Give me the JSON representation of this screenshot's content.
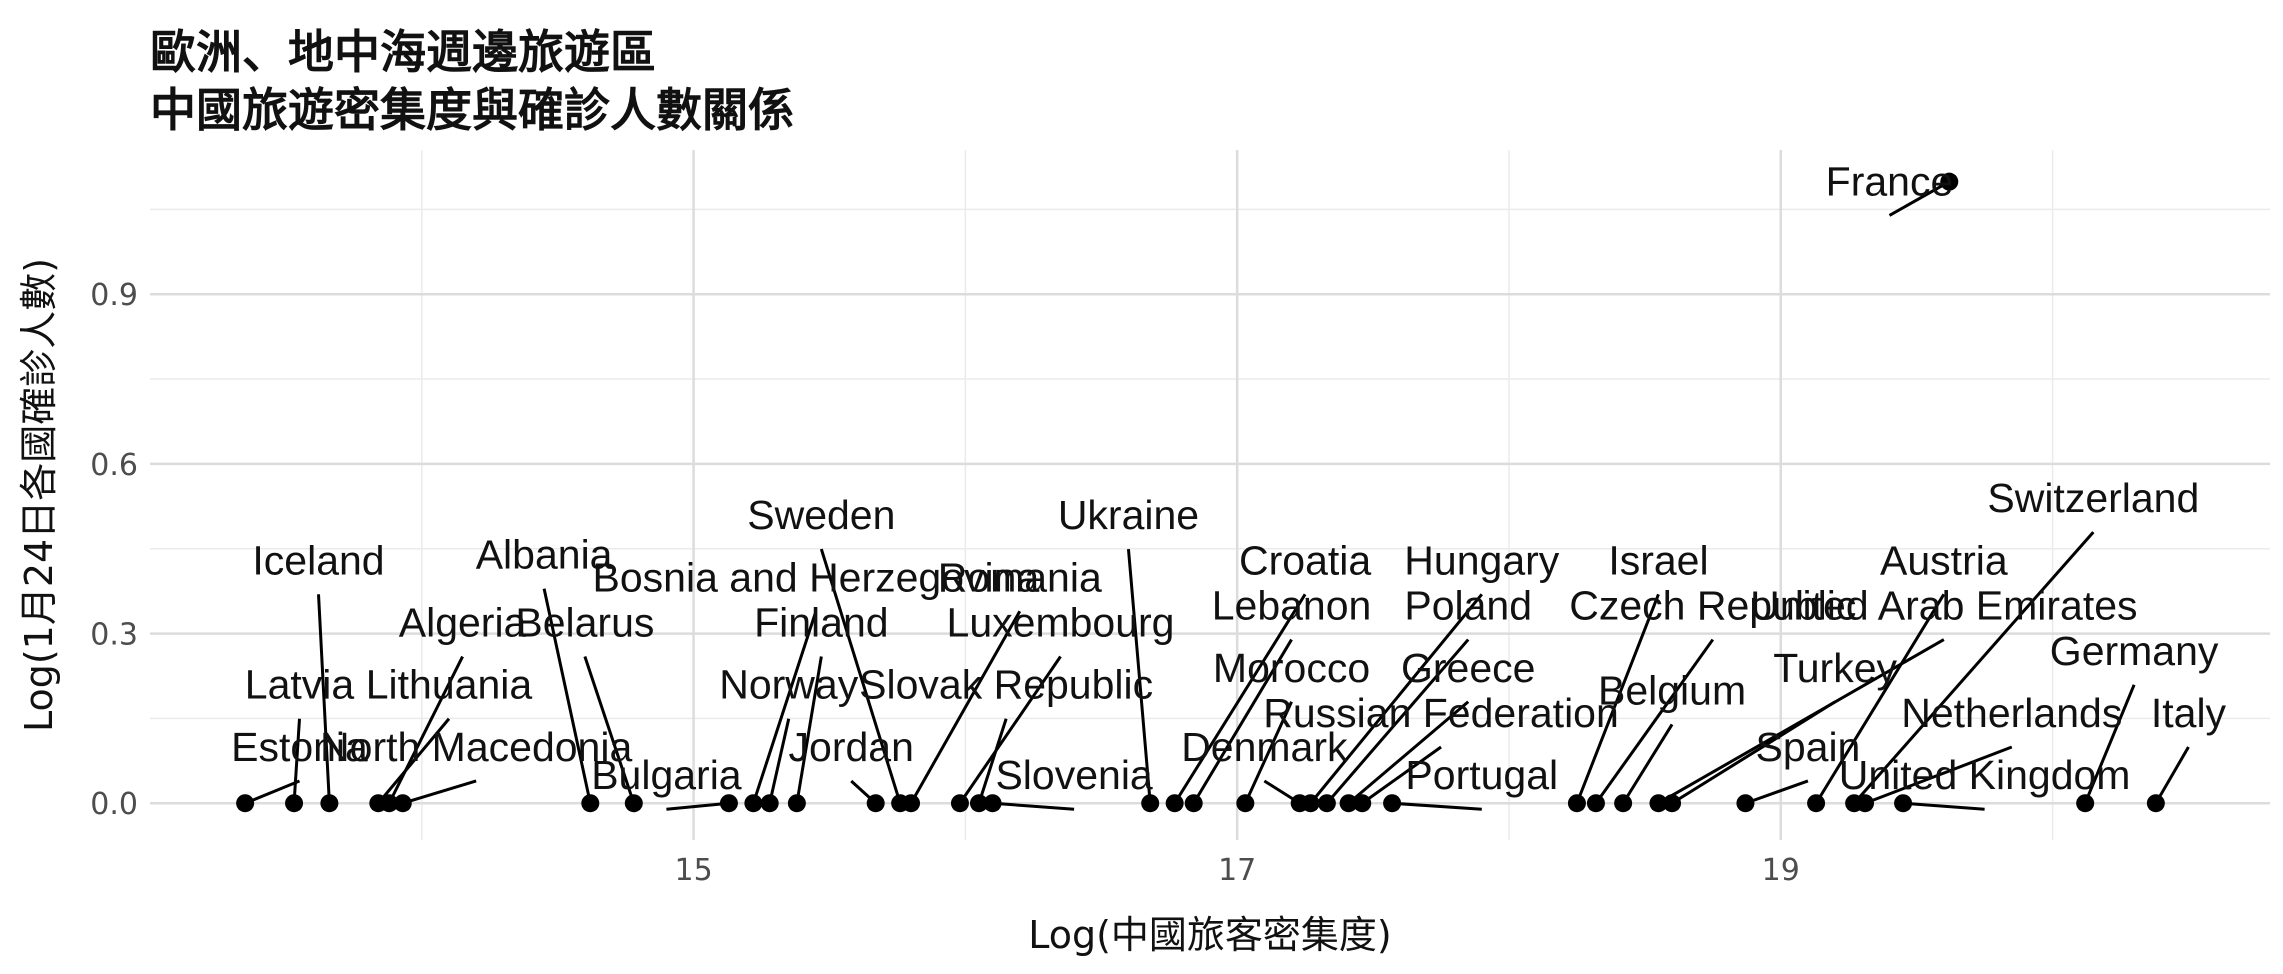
{
  "title_lines": [
    "歐洲、地中海週邊旅遊區",
    "中國旅遊密集度與確診人數關係"
  ],
  "chart_data": {
    "type": "scatter",
    "xlabel": "Log(中國旅客密集度)",
    "ylabel": "Log(1月24日各國確診人數)",
    "xlim": [
      13.0,
      20.8
    ],
    "ylim": [
      -0.065,
      1.155
    ],
    "x_ticks": [
      15,
      17,
      19
    ],
    "y_ticks": [
      0.0,
      0.3,
      0.6,
      0.9
    ],
    "y_tick_labels": [
      "0.0",
      "0.3",
      "0.6",
      "0.9"
    ],
    "grid": true,
    "points": [
      {
        "name": "Estonia",
        "x": 13.35,
        "y": 0.0,
        "lx": 13.55,
        "ly": 0.05
      },
      {
        "name": "Latvia",
        "x": 13.53,
        "y": 0.0,
        "lx": 13.55,
        "ly": 0.16
      },
      {
        "name": "Iceland",
        "x": 13.66,
        "y": 0.0,
        "lx": 13.62,
        "ly": 0.38
      },
      {
        "name": "Lithuania",
        "x": 13.84,
        "y": 0.0,
        "lx": 14.1,
        "ly": 0.16
      },
      {
        "name": "Algeria",
        "x": 13.88,
        "y": 0.0,
        "lx": 14.15,
        "ly": 0.27
      },
      {
        "name": "North Macedonia",
        "x": 13.93,
        "y": 0.0,
        "lx": 14.2,
        "ly": 0.05
      },
      {
        "name": "Albania",
        "x": 14.62,
        "y": 0.0,
        "lx": 14.45,
        "ly": 0.39
      },
      {
        "name": "Belarus",
        "x": 14.78,
        "y": 0.0,
        "lx": 14.6,
        "ly": 0.27
      },
      {
        "name": "Bulgaria",
        "x": 15.13,
        "y": 0.0,
        "lx": 14.9,
        "ly": 0.0
      },
      {
        "name": "Bosnia and Herzegovina",
        "x": 15.22,
        "y": 0.0,
        "lx": 15.45,
        "ly": 0.35
      },
      {
        "name": "Norway",
        "x": 15.28,
        "y": 0.0,
        "lx": 15.35,
        "ly": 0.16
      },
      {
        "name": "Finland",
        "x": 15.38,
        "y": 0.0,
        "lx": 15.47,
        "ly": 0.27
      },
      {
        "name": "Jordan",
        "x": 15.67,
        "y": 0.0,
        "lx": 15.58,
        "ly": 0.05
      },
      {
        "name": "Sweden",
        "x": 15.76,
        "y": 0.0,
        "lx": 15.47,
        "ly": 0.46
      },
      {
        "name": "Romania",
        "x": 15.8,
        "y": 0.0,
        "lx": 16.2,
        "ly": 0.35
      },
      {
        "name": "Luxembourg",
        "x": 15.98,
        "y": 0.0,
        "lx": 16.35,
        "ly": 0.27
      },
      {
        "name": "Slovak Republic",
        "x": 16.05,
        "y": 0.0,
        "lx": 16.15,
        "ly": 0.16
      },
      {
        "name": "Slovenia",
        "x": 16.1,
        "y": 0.0,
        "lx": 16.4,
        "ly": 0.0
      },
      {
        "name": "Ukraine",
        "x": 16.68,
        "y": 0.0,
        "lx": 16.6,
        "ly": 0.46
      },
      {
        "name": "Croatia",
        "x": 16.77,
        "y": 0.0,
        "lx": 17.25,
        "ly": 0.38
      },
      {
        "name": "Lebanon",
        "x": 16.84,
        "y": 0.0,
        "lx": 17.2,
        "ly": 0.3
      },
      {
        "name": "Morocco",
        "x": 17.03,
        "y": 0.0,
        "lx": 17.2,
        "ly": 0.19
      },
      {
        "name": "Denmark",
        "x": 17.23,
        "y": 0.0,
        "lx": 17.1,
        "ly": 0.05
      },
      {
        "name": "Hungary",
        "x": 17.27,
        "y": 0.0,
        "lx": 17.9,
        "ly": 0.38
      },
      {
        "name": "Poland",
        "x": 17.33,
        "y": 0.0,
        "lx": 17.85,
        "ly": 0.3
      },
      {
        "name": "Greece",
        "x": 17.41,
        "y": 0.0,
        "lx": 17.85,
        "ly": 0.19
      },
      {
        "name": "Russian Federation",
        "x": 17.46,
        "y": 0.0,
        "lx": 17.75,
        "ly": 0.11
      },
      {
        "name": "Portugal",
        "x": 17.57,
        "y": 0.0,
        "lx": 17.9,
        "ly": 0.0
      },
      {
        "name": "Israel",
        "x": 18.25,
        "y": 0.0,
        "lx": 18.55,
        "ly": 0.38
      },
      {
        "name": "Czech Republic",
        "x": 18.32,
        "y": 0.0,
        "lx": 18.75,
        "ly": 0.3
      },
      {
        "name": "Belgium",
        "x": 18.42,
        "y": 0.0,
        "lx": 18.6,
        "ly": 0.15
      },
      {
        "name": "United Arab Emirates",
        "x": 18.55,
        "y": 0.0,
        "lx": 19.6,
        "ly": 0.3
      },
      {
        "name": "Turkey",
        "x": 18.6,
        "y": 0.0,
        "lx": 19.2,
        "ly": 0.19
      },
      {
        "name": "Spain",
        "x": 18.87,
        "y": 0.0,
        "lx": 19.1,
        "ly": 0.05
      },
      {
        "name": "Austria",
        "x": 19.13,
        "y": 0.0,
        "lx": 19.6,
        "ly": 0.38
      },
      {
        "name": "Switzerland",
        "x": 19.27,
        "y": 0.0,
        "lx": 20.15,
        "ly": 0.49
      },
      {
        "name": "Netherlands",
        "x": 19.31,
        "y": 0.0,
        "lx": 19.85,
        "ly": 0.11
      },
      {
        "name": "United Kingdom",
        "x": 19.45,
        "y": 0.0,
        "lx": 19.75,
        "ly": 0.0
      },
      {
        "name": "France",
        "x": 19.62,
        "y": 1.099,
        "lx": 19.4,
        "ly": 1.05
      },
      {
        "name": "Germany",
        "x": 20.12,
        "y": 0.0,
        "lx": 20.3,
        "ly": 0.22
      },
      {
        "name": "Italy",
        "x": 20.38,
        "y": 0.0,
        "lx": 20.5,
        "ly": 0.11
      }
    ]
  }
}
